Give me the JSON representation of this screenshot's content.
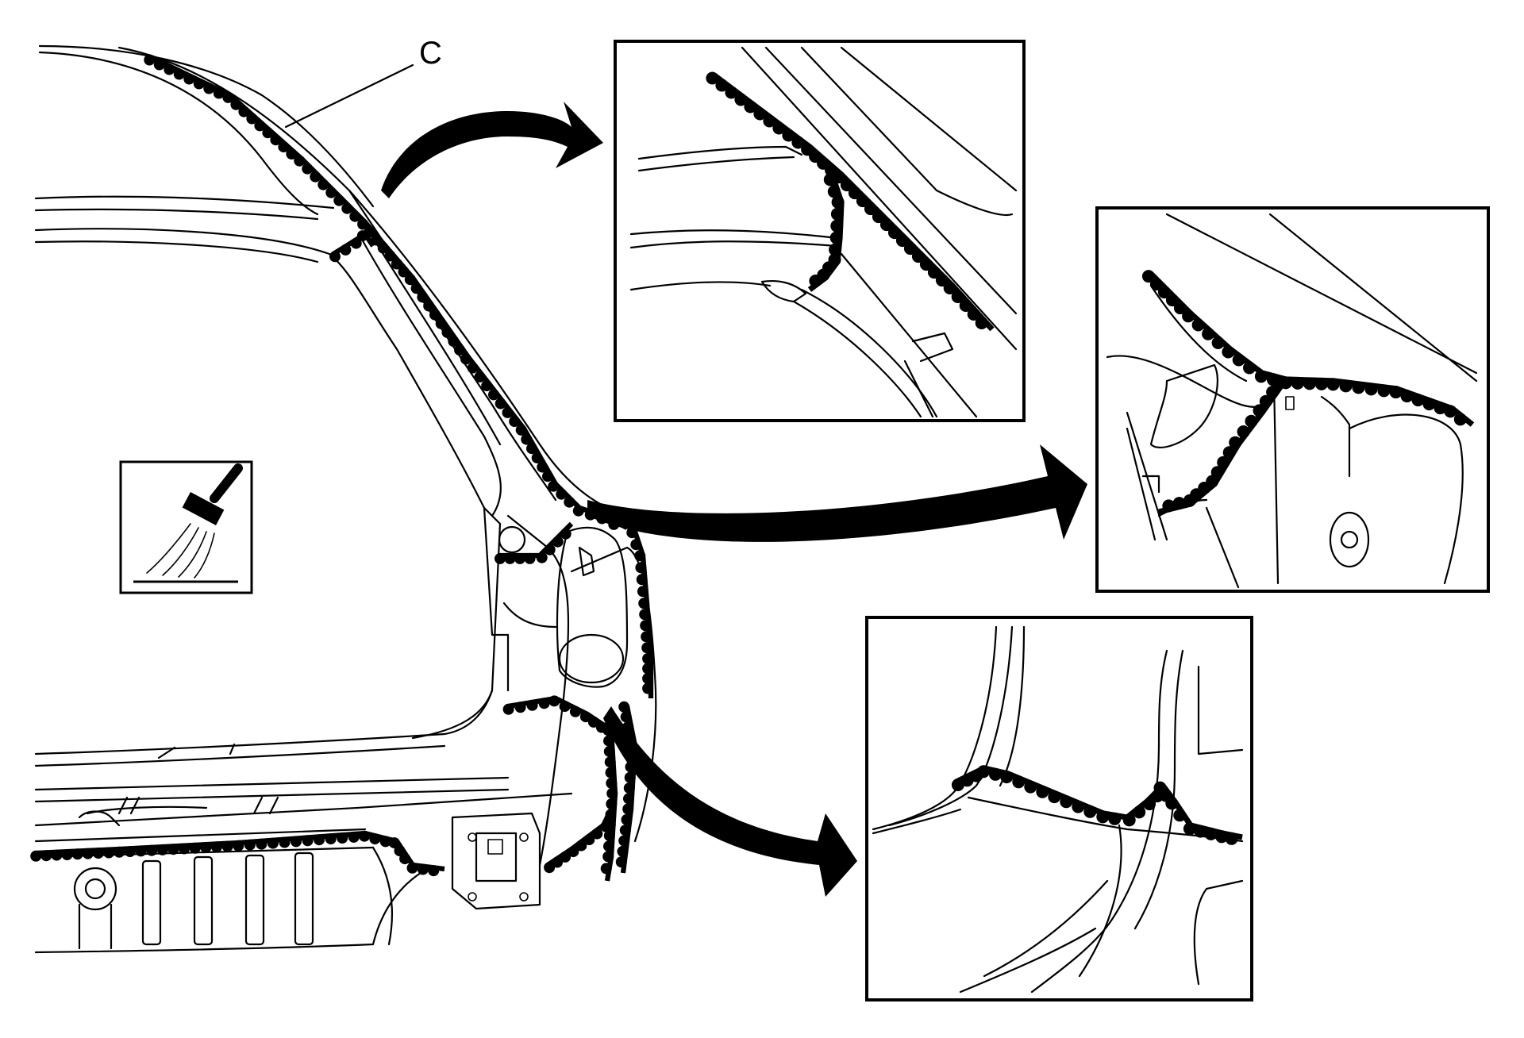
{
  "diagram": {
    "callout_letter": "C",
    "colors": {
      "line": "#000000",
      "background": "#ffffff",
      "seam_sealer": "#000000"
    },
    "icons": {
      "brush": "brush-icon"
    }
  }
}
